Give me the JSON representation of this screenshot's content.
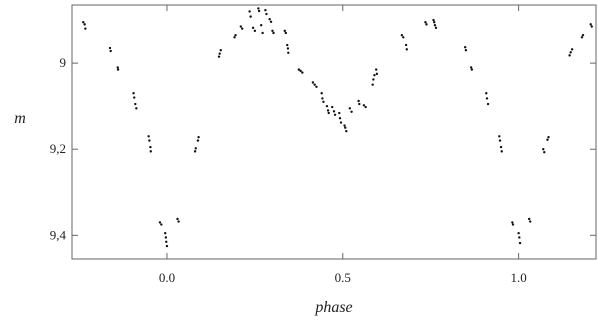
{
  "chart_data": {
    "type": "scatter",
    "title": "",
    "xlabel": "phase",
    "ylabel": "m",
    "xlim": [
      -0.27,
      1.22
    ],
    "ylim": [
      9.455,
      8.865
    ],
    "y_inverted": true,
    "grid": false,
    "x_ticks": [
      {
        "value": 0.0,
        "label": "0.0"
      },
      {
        "value": 0.5,
        "label": "0.5"
      },
      {
        "value": 1.0,
        "label": "1.0"
      }
    ],
    "y_ticks": [
      {
        "value": 9.0,
        "label": "9"
      },
      {
        "value": 9.2,
        "label": "9,2"
      },
      {
        "value": 9.4,
        "label": "9,4"
      }
    ],
    "series": [
      {
        "color": "#111111",
        "points": [
          {
            "x": -0.238,
            "y": 8.905
          },
          {
            "x": -0.234,
            "y": 8.91
          },
          {
            "x": -0.232,
            "y": 8.92
          },
          {
            "x": -0.162,
            "y": 8.965
          },
          {
            "x": -0.16,
            "y": 8.972
          },
          {
            "x": -0.14,
            "y": 9.01
          },
          {
            "x": -0.139,
            "y": 9.015
          },
          {
            "x": -0.095,
            "y": 9.07
          },
          {
            "x": -0.093,
            "y": 9.08
          },
          {
            "x": -0.09,
            "y": 9.095
          },
          {
            "x": -0.087,
            "y": 9.105
          },
          {
            "x": -0.052,
            "y": 9.17
          },
          {
            "x": -0.05,
            "y": 9.18
          },
          {
            "x": -0.047,
            "y": 9.195
          },
          {
            "x": -0.046,
            "y": 9.205
          },
          {
            "x": -0.02,
            "y": 9.37
          },
          {
            "x": -0.016,
            "y": 9.375
          },
          {
            "x": -0.005,
            "y": 9.395
          },
          {
            "x": -0.003,
            "y": 9.405
          },
          {
            "x": -0.002,
            "y": 9.415
          },
          {
            "x": 0.0,
            "y": 9.425
          },
          {
            "x": 0.03,
            "y": 9.362
          },
          {
            "x": 0.033,
            "y": 9.368
          },
          {
            "x": 0.08,
            "y": 9.205
          },
          {
            "x": 0.082,
            "y": 9.198
          },
          {
            "x": 0.088,
            "y": 9.18
          },
          {
            "x": 0.09,
            "y": 9.172
          },
          {
            "x": 0.148,
            "y": 8.985
          },
          {
            "x": 0.15,
            "y": 8.978
          },
          {
            "x": 0.153,
            "y": 8.97
          },
          {
            "x": 0.192,
            "y": 8.94
          },
          {
            "x": 0.195,
            "y": 8.935
          },
          {
            "x": 0.21,
            "y": 8.915
          },
          {
            "x": 0.214,
            "y": 8.92
          },
          {
            "x": 0.235,
            "y": 8.88
          },
          {
            "x": 0.238,
            "y": 8.892
          },
          {
            "x": 0.245,
            "y": 8.918
          },
          {
            "x": 0.25,
            "y": 8.925
          },
          {
            "x": 0.26,
            "y": 8.873
          },
          {
            "x": 0.262,
            "y": 8.879
          },
          {
            "x": 0.268,
            "y": 8.912
          },
          {
            "x": 0.272,
            "y": 8.93
          },
          {
            "x": 0.28,
            "y": 8.877
          },
          {
            "x": 0.283,
            "y": 8.886
          },
          {
            "x": 0.292,
            "y": 8.898
          },
          {
            "x": 0.296,
            "y": 8.904
          },
          {
            "x": 0.3,
            "y": 8.925
          },
          {
            "x": 0.303,
            "y": 8.93
          },
          {
            "x": 0.335,
            "y": 8.925
          },
          {
            "x": 0.338,
            "y": 8.93
          },
          {
            "x": 0.342,
            "y": 8.958
          },
          {
            "x": 0.344,
            "y": 8.966
          },
          {
            "x": 0.345,
            "y": 8.976
          },
          {
            "x": 0.375,
            "y": 9.015
          },
          {
            "x": 0.38,
            "y": 9.018
          },
          {
            "x": 0.385,
            "y": 9.022
          },
          {
            "x": 0.415,
            "y": 9.045
          },
          {
            "x": 0.42,
            "y": 9.05
          },
          {
            "x": 0.425,
            "y": 9.055
          },
          {
            "x": 0.44,
            "y": 9.07
          },
          {
            "x": 0.442,
            "y": 9.082
          },
          {
            "x": 0.445,
            "y": 9.09
          },
          {
            "x": 0.455,
            "y": 9.1
          },
          {
            "x": 0.458,
            "y": 9.11
          },
          {
            "x": 0.46,
            "y": 9.116
          },
          {
            "x": 0.47,
            "y": 9.102
          },
          {
            "x": 0.475,
            "y": 9.112
          },
          {
            "x": 0.478,
            "y": 9.12
          },
          {
            "x": 0.49,
            "y": 9.116
          },
          {
            "x": 0.492,
            "y": 9.128
          },
          {
            "x": 0.495,
            "y": 9.138
          },
          {
            "x": 0.505,
            "y": 9.145
          },
          {
            "x": 0.507,
            "y": 9.15
          },
          {
            "x": 0.51,
            "y": 9.158
          },
          {
            "x": 0.52,
            "y": 9.105
          },
          {
            "x": 0.525,
            "y": 9.113
          },
          {
            "x": 0.545,
            "y": 9.088
          },
          {
            "x": 0.547,
            "y": 9.095
          },
          {
            "x": 0.56,
            "y": 9.098
          },
          {
            "x": 0.565,
            "y": 9.102
          },
          {
            "x": 0.585,
            "y": 9.05
          },
          {
            "x": 0.587,
            "y": 9.038
          },
          {
            "x": 0.59,
            "y": 9.028
          },
          {
            "x": 0.595,
            "y": 9.015
          },
          {
            "x": 0.597,
            "y": 9.025
          },
          {
            "x": 0.668,
            "y": 8.935
          },
          {
            "x": 0.672,
            "y": 8.94
          },
          {
            "x": 0.68,
            "y": 8.958
          },
          {
            "x": 0.682,
            "y": 8.968
          },
          {
            "x": 0.735,
            "y": 8.905
          },
          {
            "x": 0.738,
            "y": 8.91
          },
          {
            "x": 0.758,
            "y": 8.9
          },
          {
            "x": 0.76,
            "y": 8.905
          },
          {
            "x": 0.762,
            "y": 8.912
          },
          {
            "x": 0.765,
            "y": 8.918
          },
          {
            "x": 0.848,
            "y": 8.963
          },
          {
            "x": 0.85,
            "y": 8.97
          },
          {
            "x": 0.865,
            "y": 9.01
          },
          {
            "x": 0.867,
            "y": 9.015
          },
          {
            "x": 0.908,
            "y": 9.07
          },
          {
            "x": 0.91,
            "y": 9.082
          },
          {
            "x": 0.913,
            "y": 9.095
          },
          {
            "x": 0.945,
            "y": 9.17
          },
          {
            "x": 0.947,
            "y": 9.18
          },
          {
            "x": 0.95,
            "y": 9.195
          },
          {
            "x": 0.952,
            "y": 9.205
          },
          {
            "x": 0.982,
            "y": 9.37
          },
          {
            "x": 0.984,
            "y": 9.375
          },
          {
            "x": 1.0,
            "y": 9.395
          },
          {
            "x": 1.002,
            "y": 9.405
          },
          {
            "x": 1.004,
            "y": 9.418
          },
          {
            "x": 1.03,
            "y": 9.362
          },
          {
            "x": 1.033,
            "y": 9.368
          },
          {
            "x": 1.07,
            "y": 9.2
          },
          {
            "x": 1.073,
            "y": 9.207
          },
          {
            "x": 1.082,
            "y": 9.178
          },
          {
            "x": 1.085,
            "y": 9.172
          },
          {
            "x": 1.145,
            "y": 8.982
          },
          {
            "x": 1.148,
            "y": 8.975
          },
          {
            "x": 1.152,
            "y": 8.968
          },
          {
            "x": 1.18,
            "y": 8.94
          },
          {
            "x": 1.183,
            "y": 8.935
          },
          {
            "x": 1.205,
            "y": 8.91
          },
          {
            "x": 1.208,
            "y": 8.915
          }
        ]
      }
    ]
  }
}
